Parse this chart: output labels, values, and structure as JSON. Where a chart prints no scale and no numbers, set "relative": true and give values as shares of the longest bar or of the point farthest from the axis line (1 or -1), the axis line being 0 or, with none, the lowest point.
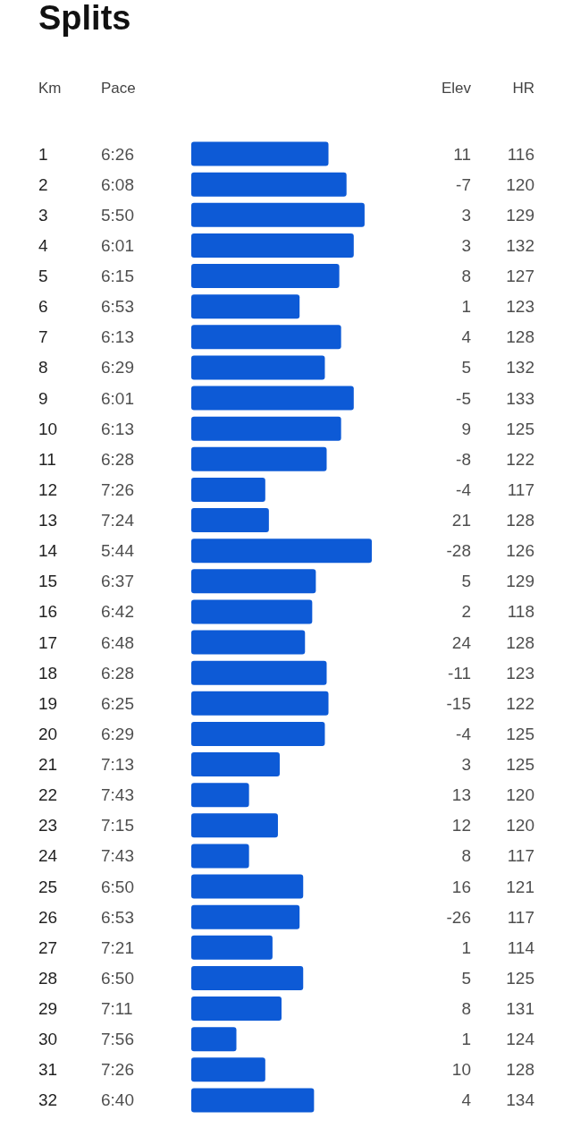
{
  "chart_data": [
    {
      "type": "bar",
      "orientation": "horizontal",
      "relative": true,
      "title": "Splits",
      "ylabel": "Km",
      "color": "#0d5ad6",
      "categories": [
        "1",
        "2",
        "3",
        "4",
        "5",
        "6",
        "7",
        "8",
        "9",
        "10",
        "11",
        "12",
        "13",
        "14",
        "15",
        "16",
        "17",
        "18",
        "19",
        "20",
        "21",
        "22",
        "23",
        "24",
        "25",
        "26",
        "27",
        "28",
        "29",
        "30",
        "31",
        "32"
      ],
      "values": [
        0.76,
        0.86,
        0.96,
        0.9,
        0.82,
        0.6,
        0.83,
        0.74,
        0.9,
        0.83,
        0.75,
        0.41,
        0.43,
        1,
        0.69,
        0.67,
        0.63,
        0.75,
        0.76,
        0.74,
        0.49,
        0.32,
        0.48,
        0.32,
        0.62,
        0.6,
        0.45,
        0.62,
        0.5,
        0.25,
        0.41,
        0.68
      ]
    },
    {
      "type": "other",
      "title": "Pace",
      "values": [
        6.433,
        6.133,
        5.833,
        6.017,
        6.25,
        6.883,
        6.217,
        6.483,
        6.017,
        6.217,
        6.467,
        7.433,
        7.4,
        5.733,
        6.617,
        6.7,
        6.8,
        6.467,
        6.417,
        6.483,
        7.217,
        7.717,
        7.25,
        7.717,
        6.833,
        6.883,
        7.35,
        6.833,
        7.183,
        7.933,
        7.433,
        6.667
      ],
      "value_labels": [
        "6:26",
        "6:08",
        "5:50",
        "6:01",
        "6:15",
        "6:53",
        "6:13",
        "6:29",
        "6:01",
        "6:13",
        "6:28",
        "7:26",
        "7:24",
        "5:44",
        "6:37",
        "6:42",
        "6:48",
        "6:28",
        "6:25",
        "6:29",
        "7:13",
        "7:43",
        "7:15",
        "7:43",
        "6:50",
        "6:53",
        "7:21",
        "6:50",
        "7:11",
        "7:56",
        "7:26",
        "6:40"
      ]
    },
    {
      "type": "other",
      "title": "Elev",
      "data_labels": true,
      "values": [
        11,
        -7,
        3,
        3,
        8,
        1,
        4,
        5,
        -5,
        9,
        -8,
        -4,
        21,
        -28,
        5,
        2,
        24,
        -11,
        -15,
        -4,
        3,
        13,
        12,
        8,
        16,
        -26,
        1,
        5,
        8,
        1,
        10,
        4
      ]
    },
    {
      "type": "other",
      "title": "HR",
      "data_labels": true,
      "values": [
        116,
        120,
        129,
        132,
        127,
        123,
        128,
        132,
        133,
        125,
        122,
        117,
        128,
        126,
        129,
        118,
        128,
        123,
        122,
        125,
        125,
        120,
        120,
        117,
        121,
        117,
        114,
        125,
        131,
        124,
        128,
        134
      ]
    }
  ]
}
